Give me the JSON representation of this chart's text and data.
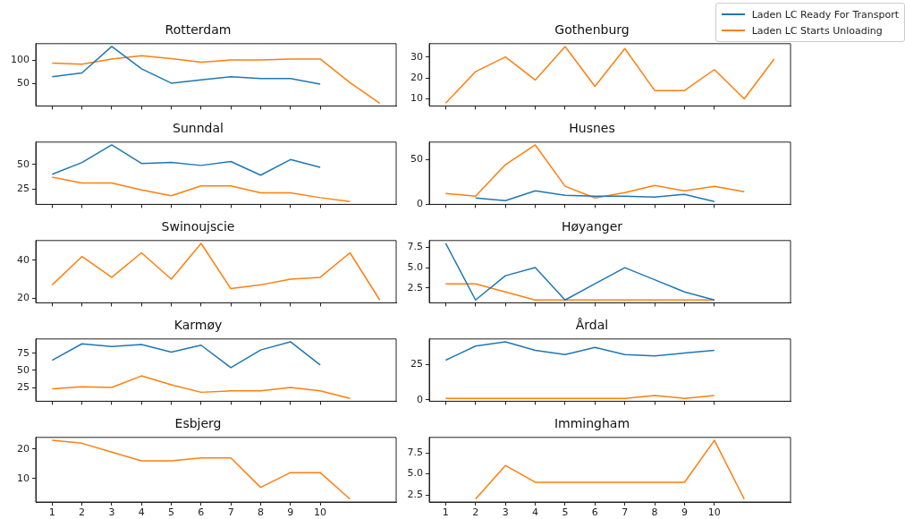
{
  "chart_data": [
    {
      "type": "line",
      "title": "Rotterdam",
      "legend": "top right",
      "grid": false,
      "tick_labels": "y",
      "xlim": [
        0.45,
        12.55
      ],
      "xticks": [
        1,
        2,
        3,
        4,
        5,
        6,
        7,
        8,
        9,
        10
      ],
      "ylim": [
        2,
        136
      ],
      "yticks": [
        50,
        100
      ],
      "series": [
        {
          "name": "Laden LC Ready For Transport",
          "color": "#1f77b4",
          "x": [
            1,
            2,
            3,
            4,
            5,
            6,
            7,
            8,
            9,
            10
          ],
          "values": [
            65,
            73,
            130,
            82,
            51,
            58,
            65,
            61,
            61,
            49
          ]
        },
        {
          "name": "Laden LC Starts Unloading",
          "color": "#ff7f0e",
          "x": [
            1,
            2,
            3,
            4,
            5,
            6,
            7,
            8,
            9,
            10,
            11,
            12
          ],
          "values": [
            94,
            92,
            103,
            110,
            104,
            96,
            101,
            101,
            103,
            103,
            52,
            8
          ]
        }
      ]
    },
    {
      "type": "line",
      "title": "Gothenburg",
      "grid": false,
      "tick_labels": "y",
      "xlim": [
        0.45,
        12.55
      ],
      "xticks": [
        1,
        2,
        3,
        4,
        5,
        6,
        7,
        8,
        9,
        10
      ],
      "ylim": [
        6.65,
        36.35
      ],
      "yticks": [
        10,
        20,
        30
      ],
      "series": [
        {
          "color": "#ff7f0e",
          "x": [
            1,
            2,
            3,
            4,
            5,
            6,
            7,
            8,
            9,
            10,
            11,
            12
          ],
          "values": [
            8,
            23,
            30,
            19,
            35,
            16,
            34,
            14,
            14,
            24,
            10,
            29
          ]
        }
      ]
    },
    {
      "type": "line",
      "title": "Sunndal",
      "grid": false,
      "tick_labels": "y",
      "xlim": [
        0.45,
        12.55
      ],
      "xticks": [
        1,
        2,
        3,
        4,
        5,
        6,
        7,
        8,
        9,
        10
      ],
      "ylim": [
        9.1,
        72.9
      ],
      "yticks": [
        25,
        50
      ],
      "series": [
        {
          "color": "#1f77b4",
          "x": [
            1,
            2,
            3,
            4,
            5,
            6,
            7,
            8,
            9,
            10
          ],
          "values": [
            40,
            52,
            70,
            51,
            52,
            49,
            53,
            39,
            55,
            47
          ]
        },
        {
          "color": "#ff7f0e",
          "x": [
            1,
            2,
            3,
            4,
            5,
            6,
            7,
            8,
            9,
            10,
            11
          ],
          "values": [
            37,
            31,
            31,
            24,
            18,
            28,
            28,
            21,
            21,
            16,
            12
          ]
        }
      ]
    },
    {
      "type": "line",
      "title": "Husnes",
      "grid": false,
      "tick_labels": "y",
      "xlim": [
        0.45,
        12.55
      ],
      "xticks": [
        1,
        2,
        3,
        4,
        5,
        6,
        7,
        8,
        9,
        10
      ],
      "ylim": [
        -0.15,
        69.15
      ],
      "yticks": [
        0,
        50
      ],
      "series": [
        {
          "color": "#1f77b4",
          "x": [
            2,
            3,
            4,
            5,
            6,
            7,
            8,
            9,
            10
          ],
          "values": [
            7,
            4,
            15,
            10,
            9,
            9,
            8,
            11,
            3
          ]
        },
        {
          "color": "#ff7f0e",
          "x": [
            1,
            2,
            3,
            4,
            5,
            6,
            7,
            8,
            9,
            10,
            11
          ],
          "values": [
            12,
            9,
            44,
            66,
            20,
            7,
            13,
            21,
            15,
            20,
            14
          ]
        }
      ]
    },
    {
      "type": "line",
      "title": "Swinoujscie",
      "grid": false,
      "tick_labels": "y",
      "xlim": [
        0.45,
        12.55
      ],
      "xticks": [
        1,
        2,
        3,
        4,
        5,
        6,
        7,
        8,
        9,
        10
      ],
      "ylim": [
        17.5,
        50.5
      ],
      "yticks": [
        20,
        40
      ],
      "series": [
        {
          "color": "#ff7f0e",
          "x": [
            1,
            2,
            3,
            4,
            5,
            6,
            7,
            8,
            9,
            10,
            11,
            12
          ],
          "values": [
            27,
            42,
            31,
            44,
            30,
            49,
            25,
            27,
            30,
            31,
            44,
            19
          ]
        }
      ]
    },
    {
      "type": "line",
      "title": "Høyanger",
      "grid": false,
      "tick_labels": "y",
      "xlim": [
        0.45,
        12.55
      ],
      "xticks": [
        1,
        2,
        3,
        4,
        5,
        6,
        7,
        8,
        9,
        10
      ],
      "ylim": [
        0.65,
        8.35
      ],
      "yticks": [
        2.5,
        {
          "value": 5,
          "label": "5.0"
        },
        7.5
      ],
      "series": [
        {
          "color": "#1f77b4",
          "x": [
            1,
            2,
            3,
            4,
            5,
            6,
            7,
            8,
            9,
            10
          ],
          "values": [
            8,
            1,
            4,
            5,
            1,
            3,
            5,
            3.5,
            2,
            1
          ]
        },
        {
          "color": "#ff7f0e",
          "x": [
            1,
            2,
            3,
            4,
            5,
            6,
            7,
            8,
            9,
            10
          ],
          "values": [
            3,
            3,
            2,
            1,
            1,
            1,
            1,
            1,
            1,
            1
          ]
        }
      ]
    },
    {
      "type": "line",
      "title": "Karmøy",
      "grid": false,
      "tick_labels": "y",
      "xlim": [
        0.45,
        12.55
      ],
      "xticks": [
        1,
        2,
        3,
        4,
        5,
        6,
        7,
        8,
        9,
        10
      ],
      "ylim": [
        4.85,
        96.15
      ],
      "yticks": [
        25,
        50,
        75
      ],
      "series": [
        {
          "color": "#1f77b4",
          "x": [
            1,
            2,
            3,
            4,
            5,
            6,
            7,
            8,
            9,
            10
          ],
          "values": [
            65,
            89,
            85,
            88,
            77,
            87,
            54,
            80,
            92,
            58
          ]
        },
        {
          "color": "#ff7f0e",
          "x": [
            1,
            2,
            3,
            4,
            5,
            6,
            7,
            8,
            9,
            10,
            11
          ],
          "values": [
            23,
            26,
            25,
            42,
            29,
            18,
            20,
            20,
            25,
            20,
            9
          ]
        }
      ]
    },
    {
      "type": "line",
      "title": "Årdal",
      "grid": false,
      "tick_labels": "y",
      "xlim": [
        0.45,
        12.55
      ],
      "xticks": [
        1,
        2,
        3,
        4,
        5,
        6,
        7,
        8,
        9,
        10
      ],
      "ylim": [
        -1,
        43
      ],
      "yticks": [
        0,
        25
      ],
      "series": [
        {
          "color": "#1f77b4",
          "x": [
            1,
            2,
            3,
            4,
            5,
            6,
            7,
            8,
            9,
            10
          ],
          "values": [
            28,
            38,
            41,
            35,
            32,
            37,
            32,
            31,
            33,
            35
          ]
        },
        {
          "color": "#ff7f0e",
          "x": [
            1,
            2,
            3,
            4,
            5,
            6,
            7,
            8,
            9,
            10
          ],
          "values": [
            1,
            1,
            1,
            1,
            1,
            1,
            1,
            3,
            1,
            3
          ]
        }
      ]
    },
    {
      "type": "line",
      "title": "Esbjerg",
      "grid": false,
      "xlim": [
        0.45,
        12.55
      ],
      "xticks": [
        1,
        2,
        3,
        4,
        5,
        6,
        7,
        8,
        9,
        10
      ],
      "ylim": [
        2,
        24
      ],
      "yticks": [
        10,
        20
      ],
      "series": [
        {
          "color": "#ff7f0e",
          "x": [
            1,
            2,
            3,
            4,
            5,
            6,
            7,
            8,
            9,
            10,
            11
          ],
          "values": [
            23,
            22,
            19,
            16,
            16,
            17,
            17,
            7,
            12,
            12,
            3
          ]
        }
      ]
    },
    {
      "type": "line",
      "title": "Immingham",
      "grid": false,
      "xlim": [
        0.45,
        12.55
      ],
      "xticks": [
        1,
        2,
        3,
        4,
        5,
        6,
        7,
        8,
        9,
        10
      ],
      "ylim": [
        1.65,
        9.35
      ],
      "yticks": [
        2.5,
        {
          "value": 5,
          "label": "5.0"
        },
        7.5
      ],
      "series": [
        {
          "color": "#ff7f0e",
          "x": [
            2,
            3,
            4,
            5,
            6,
            7,
            8,
            9,
            10,
            11
          ],
          "values": [
            2,
            6,
            4,
            4,
            4,
            4,
            4,
            4,
            9,
            2
          ]
        }
      ]
    }
  ]
}
